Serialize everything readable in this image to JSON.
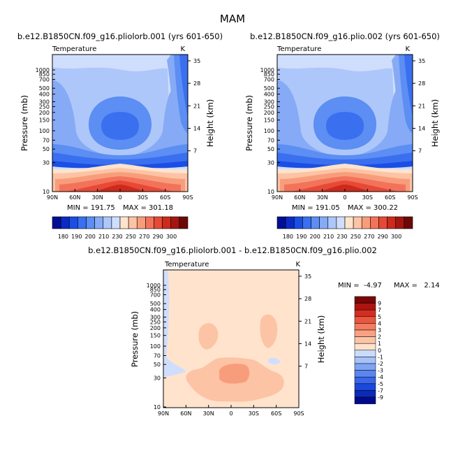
{
  "figure": {
    "title": "MAM",
    "colors": {
      "abs_scale": [
        "#000e96",
        "#0b2bc6",
        "#1a4ee4",
        "#3a6ff0",
        "#5c8ef3",
        "#86aaf6",
        "#aec7fa",
        "#cfdefd",
        "#ffe3cc",
        "#fcc3a4",
        "#f89d7c",
        "#f3735a",
        "#e64a37",
        "#cd2a1c",
        "#a51611",
        "#6e0808"
      ],
      "diff_scale": [
        "#000a8a",
        "#0a2ab8",
        "#1a48d8",
        "#3966ea",
        "#5a86f0",
        "#7fa4f4",
        "#a6c2f8",
        "#cadcfb",
        "#ffe2cc",
        "#fcc4a6",
        "#f9a283",
        "#f47c60",
        "#ea5640",
        "#d42e20",
        "#ad1410",
        "#7a0606"
      ],
      "border": "#000000"
    }
  },
  "chart_data": [
    {
      "type": "contour",
      "title": "b.e12.B1850CN.f09_g16.pliolorb.001 (yrs 601-650)",
      "subtitle_left": "Temperature",
      "subtitle_right": "K",
      "ylabel": "Pressure (mb)",
      "ylabel_right": "Height (km)",
      "xticks": [
        "90N",
        "60N",
        "30N",
        "0",
        "30S",
        "60S",
        "90S"
      ],
      "yticks": [
        "10",
        "30",
        "50",
        "70",
        "100",
        "150",
        "200",
        "250",
        "300",
        "400",
        "500",
        "700",
        "850",
        "1000"
      ],
      "yticks_right": [
        "35",
        "28",
        "21",
        "14",
        "7"
      ],
      "min_label": "MIN = 191.75",
      "max_label": "MAX = 301.18",
      "levels": [
        "180",
        "190",
        "200",
        "210",
        "230",
        "250",
        "270",
        "290",
        "300"
      ]
    },
    {
      "type": "contour",
      "title": "b.e12.B1850CN.f09_g16.plio.002 (yrs 601-650)",
      "subtitle_left": "Temperature",
      "subtitle_right": "K",
      "ylabel": "Pressure (mb)",
      "ylabel_right": "Height (km)",
      "xticks": [
        "90N",
        "60N",
        "30N",
        "0",
        "30S",
        "60S",
        "90S"
      ],
      "yticks": [
        "10",
        "30",
        "50",
        "70",
        "100",
        "150",
        "200",
        "250",
        "300",
        "400",
        "500",
        "700",
        "850",
        "1000"
      ],
      "yticks_right": [
        "35",
        "28",
        "21",
        "14",
        "7"
      ],
      "min_label": "MIN = 191.05",
      "max_label": "MAX = 300.22",
      "levels": [
        "180",
        "190",
        "200",
        "210",
        "230",
        "250",
        "270",
        "290",
        "300"
      ]
    },
    {
      "type": "contour",
      "title": "b.e12.B1850CN.f09_g16.pliolorb.001 - b.e12.B1850CN.f09_g16.plio.002",
      "subtitle_left": "Temperature",
      "subtitle_right": "K",
      "ylabel": "Pressure (mb)",
      "ylabel_right": "Height (km)",
      "xticks": [
        "90N",
        "60N",
        "30N",
        "0",
        "30S",
        "60S",
        "90S"
      ],
      "yticks": [
        "10",
        "30",
        "50",
        "70",
        "100",
        "150",
        "200",
        "250",
        "300",
        "400",
        "500",
        "700",
        "850",
        "1000"
      ],
      "yticks_right": [
        "35",
        "28",
        "21",
        "14",
        "7"
      ],
      "min_label": "MIN =  -4.97",
      "max_label": "MAX =   2.14",
      "levels": [
        "9",
        "7",
        "5",
        "4",
        "3",
        "2",
        "1",
        "0",
        "-1",
        "-2",
        "-3",
        "-4",
        "-5",
        "-7",
        "-9"
      ]
    }
  ]
}
